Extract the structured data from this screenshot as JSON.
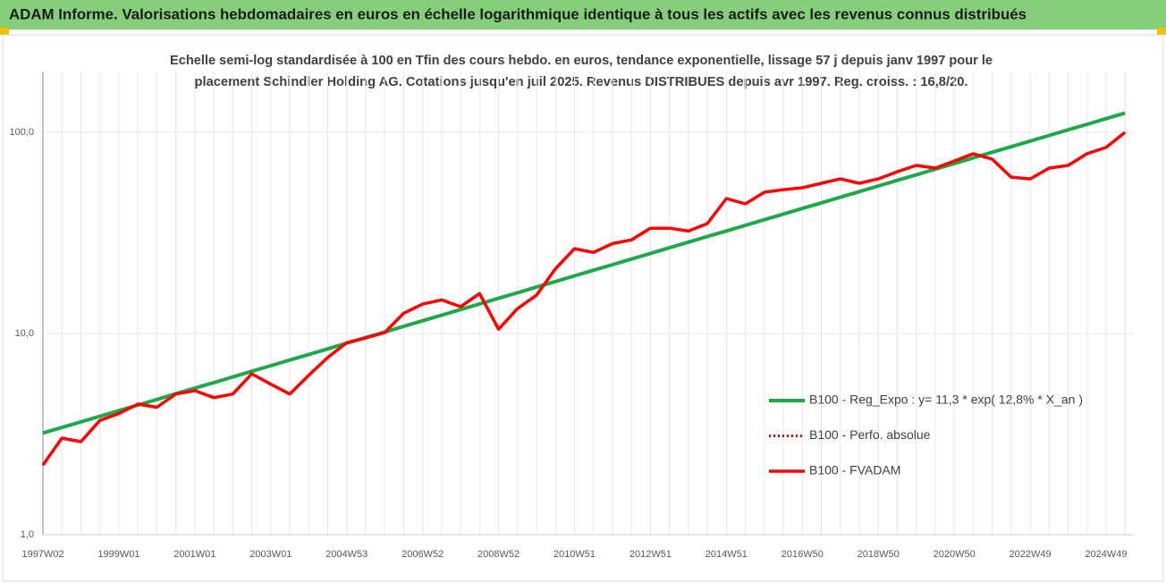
{
  "chart_data": {
    "type": "line",
    "title": "ADAM Informe. Valorisations hebdomadaires en euros en échelle logarithmique identique à tous les actifs avec les revenus connus distribués",
    "subtitle": [
      "Echelle semi-log standardisée à 100 en Tfin des cours hebdo. en euros, tendance exponentielle, lissage 57 j depuis janv 1997 pour le",
      "placement Schindler Holding AG. Cotations jusqu'en juil 2025. Revenus DISTRIBUES depuis avr 1997. Reg. croiss. : 16,8/20."
    ],
    "categories": [
      "1997W02",
      null,
      null,
      null,
      "1999W01",
      null,
      null,
      null,
      "2001W01",
      null,
      null,
      null,
      "2003W01",
      null,
      null,
      null,
      "2004W53",
      null,
      null,
      null,
      "2006W52",
      null,
      null,
      null,
      "2008W52",
      null,
      null,
      null,
      "2010W51",
      null,
      null,
      null,
      "2012W51",
      null,
      null,
      null,
      "2014W51",
      null,
      null,
      null,
      "2016W50",
      null,
      null,
      null,
      "2018W50",
      null,
      null,
      null,
      "2020W50",
      null,
      null,
      null,
      "2022W49",
      null,
      null,
      null,
      "2024W49",
      null
    ],
    "series": [
      {
        "name": "B100 - Reg_Expo : y= 11,3 * exp( 12,8% *  X_an )",
        "color": "#1fa84a",
        "style": "solid",
        "width": 4,
        "values": [
          3.2,
          3.41,
          3.64,
          3.88,
          4.14,
          4.41,
          4.7,
          5.02,
          5.35,
          5.7,
          6.08,
          6.49,
          6.92,
          7.38,
          7.87,
          8.39,
          8.95,
          9.54,
          10.17,
          10.85,
          11.57,
          12.34,
          13.16,
          14.03,
          14.96,
          15.95,
          17.01,
          18.14,
          19.35,
          20.63,
          22.0,
          23.46,
          25.02,
          26.68,
          28.45,
          30.34,
          32.35,
          34.5,
          36.79,
          39.23,
          41.84,
          44.61,
          47.58,
          50.74,
          54.1,
          57.7,
          61.53,
          65.61,
          69.97,
          74.61,
          79.57,
          84.85,
          90.49,
          96.49,
          102.9,
          109.7,
          117.0,
          124.8
        ]
      },
      {
        "name": "B100 - Perfo. absolue",
        "color": "#e00000",
        "style": "dotted",
        "width": 3,
        "values": [
          2.22,
          3.02,
          2.9,
          3.7,
          4.0,
          4.46,
          4.3,
          5.0,
          5.2,
          4.8,
          5.0,
          6.3,
          5.6,
          5.0,
          6.2,
          7.6,
          9.0,
          9.5,
          10.1,
          12.6,
          14.0,
          14.7,
          13.6,
          15.8,
          10.5,
          13.3,
          15.5,
          21.0,
          26.4,
          25.3,
          28.0,
          29.2,
          33.4,
          33.4,
          32.3,
          35.2,
          46.9,
          44.1,
          50.4,
          51.9,
          53.0,
          55.8,
          58.7,
          55.8,
          58.7,
          63.7,
          68.5,
          66.4,
          72.0,
          78.3,
          73.6,
          59.9,
          58.7,
          66.4,
          68.5,
          78.3,
          84.1,
          100.0
        ]
      },
      {
        "name": "B100 - FVADAM",
        "color": "#ff0000",
        "style": "solid",
        "width": 3.5,
        "values": [
          2.22,
          3.02,
          2.9,
          3.7,
          4.0,
          4.46,
          4.3,
          5.0,
          5.2,
          4.8,
          5.0,
          6.3,
          5.6,
          5.0,
          6.2,
          7.6,
          9.0,
          9.5,
          10.1,
          12.6,
          14.0,
          14.7,
          13.6,
          15.8,
          10.5,
          13.3,
          15.5,
          21.0,
          26.4,
          25.3,
          28.0,
          29.2,
          33.4,
          33.4,
          32.3,
          35.2,
          46.9,
          44.1,
          50.4,
          51.9,
          53.0,
          55.8,
          58.7,
          55.8,
          58.7,
          63.7,
          68.5,
          66.4,
          72.0,
          78.3,
          73.6,
          59.9,
          58.7,
          66.4,
          68.5,
          78.3,
          84.1,
          100.0
        ]
      }
    ],
    "ylim": [
      1,
      200
    ],
    "yticks": [
      {
        "value": 1,
        "label": "1,0"
      },
      {
        "value": 10,
        "label": "10,0"
      },
      {
        "value": 100,
        "label": "100,0"
      }
    ],
    "log_y": true,
    "grid": true,
    "legend": "right"
  }
}
